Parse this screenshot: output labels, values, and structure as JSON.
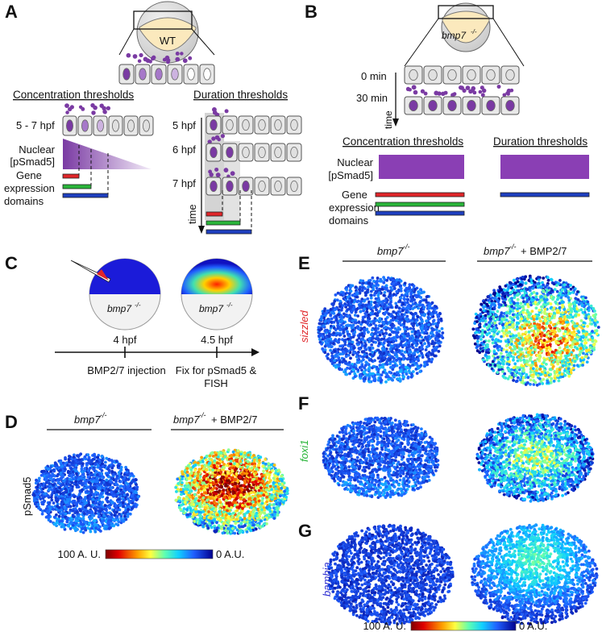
{
  "panels": {
    "A": {
      "label": "A",
      "embryo_label": "WT",
      "conc_title": "Concentration thresholds",
      "dur_title": "Duration thresholds",
      "time_5_7": "5 - 7 hpf",
      "nuclear_1": "Nuclear",
      "nuclear_2": "[pSmad5]",
      "gene_1": "Gene",
      "gene_2": "expression",
      "gene_3": "domains",
      "t5": "5 hpf",
      "t6": "6 hpf",
      "t7": "7 hpf",
      "time_axis": "time"
    },
    "B": {
      "label": "B",
      "embryo_label": "bmp7",
      "embryo_sup": "-/-",
      "t0": "0 min",
      "t30": "30 min",
      "time_axis": "time",
      "conc_title": "Concentration thresholds",
      "dur_title": "Duration thresholds",
      "nuclear_1": "Nuclear",
      "nuclear_2": "[pSmad5]",
      "gene_1": "Gene",
      "gene_2": "expression",
      "gene_3": "domains"
    },
    "C": {
      "label": "C",
      "embryo_label": "bmp7",
      "embryo_sup": "-/-",
      "t1": "4 hpf",
      "t2": "4.5 hpf",
      "step1": "BMP2/7 injection",
      "step2a": "Fix for pSmad5 &",
      "step2b": "FISH"
    },
    "D": {
      "label": "D",
      "col1": "bmp7",
      "col1_sup": "-/-",
      "col2": "bmp7",
      "col2_sup": "-/-",
      "col2_suffix": " + BMP2/7",
      "row": "pSmad5",
      "scale_max": "100 A. U.",
      "scale_min": "0 A.U."
    },
    "E": {
      "label": "E",
      "col1": "bmp7",
      "col1_sup": "-/-",
      "col2": "bmp7",
      "col2_sup": "-/-",
      "col2_suffix": " + BMP2/7",
      "gene": "sizzled"
    },
    "F": {
      "label": "F",
      "gene": "foxi1"
    },
    "G": {
      "label": "G",
      "gene": "bambia",
      "scale_max": "100 A. U.",
      "scale_min": "0 A.U."
    }
  },
  "colors": {
    "purple": "#7a3aa3",
    "purple_bar": "#8a3fb4",
    "red": "#e0262a",
    "green": "#2ab53a",
    "blue": "#1e3fbf",
    "sizzled": "#e0262a",
    "foxi1": "#2ab53a",
    "bambia": "#2a2ad0",
    "yolk": "#fbe9bd"
  }
}
